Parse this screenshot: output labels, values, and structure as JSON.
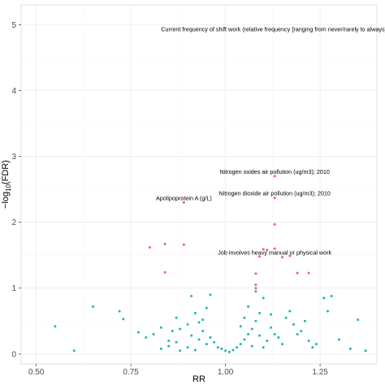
{
  "chart_data": {
    "type": "scatter",
    "title": "",
    "xlabel": "RR",
    "ylabel": "−log10(FDR)",
    "ylabel_prefix": "−log",
    "ylabel_sub": "10",
    "ylabel_suffix": "(FDR)",
    "xlim": [
      0.46,
      1.4
    ],
    "ylim": [
      -0.15,
      5.3
    ],
    "x_ticks": [
      0.5,
      0.75,
      1.0,
      1.25
    ],
    "x_tick_labels": [
      "0.50",
      "0.75",
      "1.00",
      "1.25"
    ],
    "y_ticks": [
      0,
      1,
      2,
      3,
      4,
      5
    ],
    "y_tick_labels": [
      "0",
      "1",
      "2",
      "3",
      "4",
      "5"
    ],
    "grid": true,
    "colors": {
      "significant": "#E8675F",
      "nonsignificant": "#1FB5B5",
      "grid_major": "#e9e9e9",
      "grid_minor": "#f4f4f4",
      "panel_border": "#cccccc"
    },
    "annotations": [
      {
        "text": "Current frequency of shift work (relative frequency [ranging from never/rarely to always])",
        "x": 1.13,
        "y": 4.86
      },
      {
        "text": "Nitrogen oxides air pollution (ug/m3); 2010",
        "x": 1.13,
        "y": 2.7
      },
      {
        "text": "Nitrogen dioxide air pollution (ug/m3); 2010",
        "x": 1.13,
        "y": 2.37
      },
      {
        "text": "Apolipoprotein A (g/L)",
        "x": 0.89,
        "y": 2.3
      },
      {
        "text": "Job involves heavy manual or physical work",
        "x": 1.13,
        "y": 1.47
      }
    ],
    "series": [
      {
        "group": "significant",
        "points": [
          [
            0.89,
            2.3
          ],
          [
            1.13,
            2.7
          ],
          [
            1.13,
            2.37
          ],
          [
            1.13,
            1.97
          ],
          [
            0.8,
            1.62
          ],
          [
            0.84,
            1.67
          ],
          [
            0.89,
            1.66
          ],
          [
            1.1,
            1.59
          ],
          [
            1.11,
            1.58
          ],
          [
            1.13,
            1.6
          ],
          [
            1.09,
            1.48
          ],
          [
            1.15,
            1.47
          ],
          [
            1.17,
            1.49
          ],
          [
            0.84,
            1.24
          ],
          [
            1.08,
            1.22
          ],
          [
            1.19,
            1.23
          ],
          [
            1.22,
            1.23
          ],
          [
            1.08,
            1.05
          ],
          [
            1.08,
            1.0
          ]
        ]
      },
      {
        "group": "nonsignificant",
        "points": [
          [
            0.55,
            0.42
          ],
          [
            0.6,
            0.05
          ],
          [
            0.65,
            0.72
          ],
          [
            0.72,
            0.65
          ],
          [
            0.73,
            0.53
          ],
          [
            0.77,
            0.33
          ],
          [
            0.79,
            0.25
          ],
          [
            0.81,
            0.3
          ],
          [
            0.83,
            0.4
          ],
          [
            0.85,
            0.2
          ],
          [
            0.86,
            0.35
          ],
          [
            0.87,
            0.55
          ],
          [
            0.88,
            0.38
          ],
          [
            0.87,
            0.18
          ],
          [
            0.9,
            0.45
          ],
          [
            0.91,
            0.28
          ],
          [
            0.92,
            0.62
          ],
          [
            0.93,
            0.22
          ],
          [
            0.94,
            0.35
          ],
          [
            0.95,
            0.15
          ],
          [
            0.96,
            0.25
          ],
          [
            0.97,
            0.18
          ],
          [
            0.98,
            0.1
          ],
          [
            0.99,
            0.08
          ],
          [
            0.96,
            0.9
          ],
          [
            0.95,
            0.7
          ],
          [
            0.94,
            0.52
          ],
          [
            0.93,
            0.48
          ],
          [
            0.91,
            0.88
          ],
          [
            0.83,
            0.08
          ],
          [
            0.85,
            0.12
          ],
          [
            0.88,
            0.05
          ],
          [
            0.9,
            0.1
          ],
          [
            0.92,
            0.06
          ],
          [
            1.0,
            0.05
          ],
          [
            1.01,
            0.03
          ],
          [
            1.02,
            0.06
          ],
          [
            1.03,
            0.1
          ],
          [
            1.04,
            0.15
          ],
          [
            1.05,
            0.22
          ],
          [
            1.06,
            0.3
          ],
          [
            1.07,
            0.38
          ],
          [
            1.08,
            0.5
          ],
          [
            1.09,
            0.62
          ],
          [
            1.1,
            0.85
          ],
          [
            1.08,
            0.95
          ],
          [
            1.06,
            0.72
          ],
          [
            1.05,
            0.55
          ],
          [
            1.04,
            0.42
          ],
          [
            1.12,
            0.4
          ],
          [
            1.13,
            0.3
          ],
          [
            1.14,
            0.25
          ],
          [
            1.15,
            0.15
          ],
          [
            1.11,
            0.2
          ],
          [
            1.1,
            0.1
          ],
          [
            1.16,
            0.55
          ],
          [
            1.17,
            0.65
          ],
          [
            1.18,
            0.45
          ],
          [
            1.2,
            0.35
          ],
          [
            1.21,
            0.5
          ],
          [
            1.22,
            0.2
          ],
          [
            1.24,
            0.15
          ],
          [
            1.26,
            0.85
          ],
          [
            1.28,
            0.88
          ],
          [
            1.3,
            0.22
          ],
          [
            1.33,
            0.08
          ],
          [
            1.35,
            0.52
          ],
          [
            1.37,
            0.05
          ],
          [
            1.27,
            0.65
          ],
          [
            1.23,
            0.1
          ],
          [
            1.19,
            0.3
          ],
          [
            1.12,
            0.6
          ],
          [
            1.09,
            0.28
          ],
          [
            1.07,
            0.12
          ]
        ]
      }
    ]
  }
}
